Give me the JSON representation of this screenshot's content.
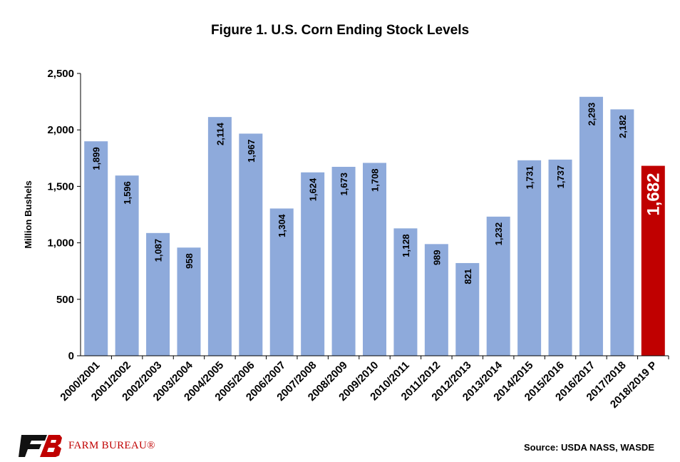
{
  "chart_data": {
    "type": "bar",
    "title": "Figure 1. U.S. Corn Ending Stock Levels",
    "ylabel": "Million Bushels",
    "xlabel": "",
    "ylim": [
      0,
      2500
    ],
    "yticks": [
      "0",
      "500",
      "1,000",
      "1,500",
      "2,000",
      "2,500"
    ],
    "ytick_values": [
      0,
      500,
      1000,
      1500,
      2000,
      2500
    ],
    "grid": false,
    "categories": [
      "2000/2001",
      "2001/2002",
      "2002/2003",
      "2003/2004",
      "2004/2005",
      "2005/2006",
      "2006/2007",
      "2007/2008",
      "2008/2009",
      "2009/2010",
      "2010/2011",
      "2011/2012",
      "2012/2013",
      "2013/2014",
      "2014/2015",
      "2015/2016",
      "2016/2017",
      "2017/2018",
      "2018/2019 P"
    ],
    "values": [
      1899,
      1596,
      1087,
      958,
      2114,
      1967,
      1304,
      1624,
      1673,
      1708,
      1128,
      989,
      821,
      1232,
      1731,
      1737,
      2293,
      2182,
      1682
    ],
    "value_labels": [
      "1,899",
      "1,596",
      "1,087",
      "958",
      "2,114",
      "1,967",
      "1,304",
      "1,624",
      "1,673",
      "1,708",
      "1,128",
      "989",
      "821",
      "1,232",
      "1,731",
      "1,737",
      "2,293",
      "2,182",
      "1,682"
    ],
    "colors": {
      "bar": "#8eaadb",
      "highlight": "#c00000"
    },
    "highlight_index": 18
  },
  "footer": {
    "source": "Source: USDA NASS, WASDE",
    "logo_text": "FARM BUREAU®",
    "logo_icon": "farm-bureau-fb-logo"
  }
}
